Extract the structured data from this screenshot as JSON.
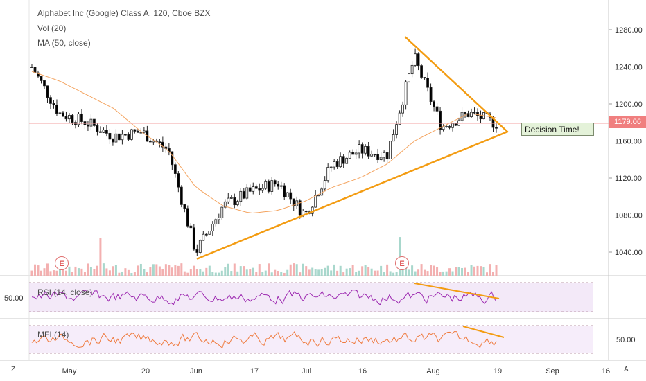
{
  "header": {
    "title": "Alphabet Inc (Google) Class A, 120, Cboe BZX",
    "volume_label": "Vol (20)",
    "ma_label": "MA (50, close)"
  },
  "annotations": {
    "callout": "Decision Time!",
    "earnings_marker": "E"
  },
  "price_axis": {
    "current_price": "1179.06",
    "ticks": [
      "1280.00",
      "1240.00",
      "1200.00",
      "1160.00",
      "1120.00",
      "1080.00",
      "1040.00"
    ]
  },
  "rsi_panel": {
    "label": "RSI (14, close)",
    "tick": "50.00"
  },
  "mfi_panel": {
    "label": "MFI (14)",
    "tick": "50.00"
  },
  "time_axis": {
    "ticks": [
      "May",
      "20",
      "Jun",
      "17",
      "Jul",
      "16",
      "Aug",
      "19",
      "Sep",
      "16"
    ]
  },
  "corner_buttons": {
    "left": "Z",
    "right": "A"
  },
  "colors": {
    "up_candle": "#ffffff",
    "down_candle": "#000000",
    "ma_line": "#f4a460",
    "trendline": "#f39c12",
    "rsi_line": "#9c27b0",
    "mfi_line": "#ef7b3e",
    "volume_up": "#9fd3c7",
    "volume_down": "#f2a7a7",
    "price_tag": "#f07f7f"
  },
  "chart_data": {
    "type": "candlestick",
    "title": "Alphabet Inc (Google) Class A, 120, Cboe BZX",
    "ylim": [
      1020,
      1300
    ],
    "x": [
      "Apr 22",
      "Apr 29",
      "May 6",
      "May 13",
      "May 20",
      "May 27",
      "Jun 3",
      "Jun 10",
      "Jun 17",
      "Jun 24",
      "Jul 1",
      "Jul 8",
      "Jul 15",
      "Jul 22",
      "Jul 29",
      "Aug 5",
      "Aug 12",
      "Aug 19"
    ],
    "series": [
      {
        "name": "price",
        "values": [
          1240,
          1190,
          1180,
          1165,
          1170,
          1150,
          1040,
          1090,
          1105,
          1115,
          1080,
          1135,
          1150,
          1145,
          1250,
          1175,
          1190,
          1179
        ]
      },
      {
        "name": "MA (50, close)",
        "values": [
          1235,
          1225,
          1210,
          1195,
          1170,
          1150,
          1110,
          1090,
          1082,
          1085,
          1095,
          1110,
          1120,
          1135,
          1160,
          1175,
          1190,
          1185
        ]
      }
    ],
    "trendlines": [
      {
        "from": [
          "Jun 3",
          1033
        ],
        "to": [
          "Aug 23",
          1170
        ]
      },
      {
        "from": [
          "Jul 29",
          1272
        ],
        "to": [
          "Aug 23",
          1170
        ]
      }
    ],
    "reference_line": 1179.06
  }
}
